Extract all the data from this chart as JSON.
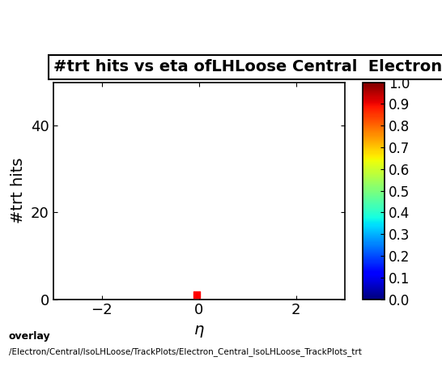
{
  "title": "#trt hits vs eta ofLHLoose Central  Electron",
  "xlabel": "η",
  "ylabel": "#trt hits",
  "xlim": [
    -3.0,
    3.0
  ],
  "ylim": [
    0,
    50
  ],
  "xticks": [
    -2,
    0,
    2
  ],
  "yticks": [
    0,
    20,
    40
  ],
  "colorbar_ticks": [
    0,
    0.1,
    0.2,
    0.3,
    0.4,
    0.5,
    0.6,
    0.7,
    0.8,
    0.9,
    1.0
  ],
  "data_point_x": -0.05,
  "data_point_y": 1,
  "data_point_color": "red",
  "footer_line1": "overlay",
  "footer_line2": "/Electron/Central/IsoLHLoose/TrackPlots/Electron_Central_IsoLHLoose_TrackPlots_trt",
  "bg_color": "#ffffff",
  "title_fontsize": 14,
  "axis_label_fontsize": 14,
  "tick_fontsize": 13,
  "cb_tick_fontsize": 12
}
